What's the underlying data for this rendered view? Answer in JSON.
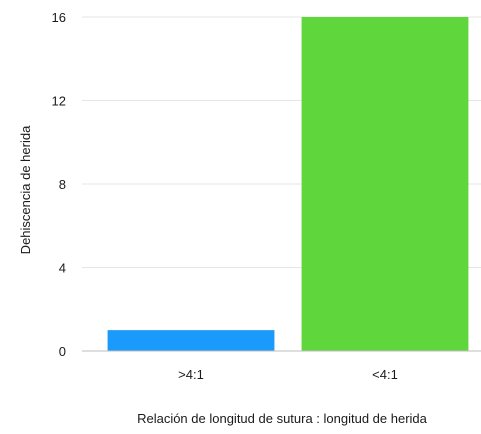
{
  "chart_data": {
    "type": "bar",
    "categories": [
      ">4:1",
      "<4:1"
    ],
    "values": [
      1,
      16
    ],
    "colors": [
      "#1a9bfc",
      "#5ed63c"
    ],
    "xlabel": "Relación de longitud de sutura : longitud de herida",
    "ylabel": "Dehiscencia de herida",
    "ylim": [
      0,
      16
    ],
    "yticks": [
      0,
      4,
      8,
      12,
      16
    ],
    "grid": true
  }
}
